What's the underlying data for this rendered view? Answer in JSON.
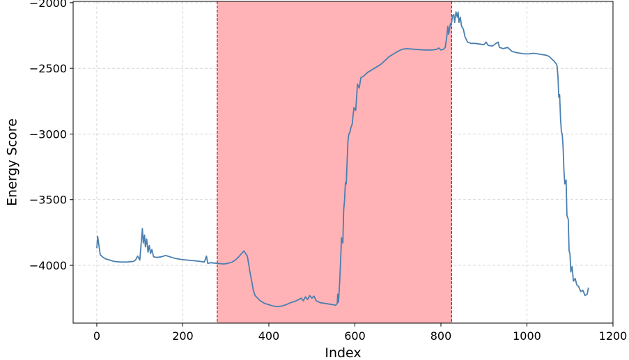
{
  "chart_data": {
    "type": "line",
    "title": "",
    "xlabel": "Index",
    "ylabel": "Energy Score",
    "xlim": [
      -55,
      1200
    ],
    "ylim": [
      -4440,
      -1990
    ],
    "xticks": [
      0,
      200,
      400,
      600,
      800,
      1000,
      1200
    ],
    "xtick_labels": [
      "0",
      "200",
      "400",
      "600",
      "800",
      "1000",
      "1200"
    ],
    "yticks": [
      -2000,
      -2500,
      -3000,
      -3500,
      -4000
    ],
    "ytick_labels": [
      "−2000",
      "−2500",
      "−3000",
      "−3500",
      "−4000"
    ],
    "grid": true,
    "shaded_region": {
      "x_start": 280,
      "x_end": 825,
      "color": "#ffb3b6",
      "edge_color": "#e00000"
    },
    "series": [
      {
        "color": "#4a7fb0",
        "points": [
          [
            0,
            -3870
          ],
          [
            2,
            -3780
          ],
          [
            5,
            -3850
          ],
          [
            8,
            -3920
          ],
          [
            15,
            -3940
          ],
          [
            20,
            -3950
          ],
          [
            30,
            -3960
          ],
          [
            40,
            -3970
          ],
          [
            55,
            -3975
          ],
          [
            70,
            -3975
          ],
          [
            85,
            -3970
          ],
          [
            90,
            -3960
          ],
          [
            95,
            -3930
          ],
          [
            100,
            -3960
          ],
          [
            104,
            -3800
          ],
          [
            106,
            -3720
          ],
          [
            108,
            -3830
          ],
          [
            111,
            -3770
          ],
          [
            113,
            -3860
          ],
          [
            116,
            -3800
          ],
          [
            119,
            -3900
          ],
          [
            122,
            -3850
          ],
          [
            125,
            -3910
          ],
          [
            128,
            -3880
          ],
          [
            132,
            -3935
          ],
          [
            140,
            -3940
          ],
          [
            150,
            -3935
          ],
          [
            160,
            -3925
          ],
          [
            170,
            -3935
          ],
          [
            180,
            -3945
          ],
          [
            195,
            -3955
          ],
          [
            210,
            -3960
          ],
          [
            225,
            -3965
          ],
          [
            240,
            -3970
          ],
          [
            250,
            -3975
          ],
          [
            255,
            -3930
          ],
          [
            258,
            -3985
          ],
          [
            265,
            -3980
          ],
          [
            280,
            -3985
          ],
          [
            295,
            -3990
          ],
          [
            305,
            -3985
          ],
          [
            315,
            -3975
          ],
          [
            322,
            -3960
          ],
          [
            330,
            -3935
          ],
          [
            338,
            -3905
          ],
          [
            342,
            -3890
          ],
          [
            346,
            -3910
          ],
          [
            350,
            -3930
          ],
          [
            353,
            -3990
          ],
          [
            356,
            -4050
          ],
          [
            360,
            -4120
          ],
          [
            364,
            -4190
          ],
          [
            368,
            -4230
          ],
          [
            374,
            -4250
          ],
          [
            380,
            -4270
          ],
          [
            390,
            -4290
          ],
          [
            400,
            -4300
          ],
          [
            410,
            -4310
          ],
          [
            420,
            -4315
          ],
          [
            430,
            -4310
          ],
          [
            440,
            -4300
          ],
          [
            450,
            -4285
          ],
          [
            460,
            -4275
          ],
          [
            470,
            -4260
          ],
          [
            475,
            -4250
          ],
          [
            480,
            -4270
          ],
          [
            485,
            -4240
          ],
          [
            490,
            -4260
          ],
          [
            495,
            -4230
          ],
          [
            500,
            -4250
          ],
          [
            505,
            -4235
          ],
          [
            510,
            -4270
          ],
          [
            520,
            -4285
          ],
          [
            530,
            -4290
          ],
          [
            540,
            -4295
          ],
          [
            550,
            -4300
          ],
          [
            555,
            -4305
          ],
          [
            559,
            -4290
          ],
          [
            560,
            -4220
          ],
          [
            562,
            -4280
          ],
          [
            565,
            -4100
          ],
          [
            567,
            -3950
          ],
          [
            569,
            -3790
          ],
          [
            572,
            -3830
          ],
          [
            574,
            -3580
          ],
          [
            576,
            -3500
          ],
          [
            578,
            -3370
          ],
          [
            580,
            -3380
          ],
          [
            582,
            -3200
          ],
          [
            584,
            -3050
          ],
          [
            586,
            -3000
          ],
          [
            588,
            -2990
          ],
          [
            591,
            -2950
          ],
          [
            594,
            -2920
          ],
          [
            596,
            -2850
          ],
          [
            598,
            -2800
          ],
          [
            602,
            -2820
          ],
          [
            606,
            -2620
          ],
          [
            610,
            -2650
          ],
          [
            614,
            -2570
          ],
          [
            620,
            -2560
          ],
          [
            630,
            -2530
          ],
          [
            640,
            -2510
          ],
          [
            650,
            -2490
          ],
          [
            660,
            -2470
          ],
          [
            670,
            -2440
          ],
          [
            680,
            -2410
          ],
          [
            690,
            -2390
          ],
          [
            700,
            -2370
          ],
          [
            710,
            -2355
          ],
          [
            720,
            -2350
          ],
          [
            740,
            -2355
          ],
          [
            760,
            -2360
          ],
          [
            780,
            -2360
          ],
          [
            790,
            -2355
          ],
          [
            795,
            -2345
          ],
          [
            800,
            -2360
          ],
          [
            806,
            -2355
          ],
          [
            810,
            -2340
          ],
          [
            814,
            -2250
          ],
          [
            816,
            -2180
          ],
          [
            818,
            -2240
          ],
          [
            822,
            -2160
          ],
          [
            824,
            -2170
          ],
          [
            827,
            -2100
          ],
          [
            830,
            -2090
          ],
          [
            832,
            -2150
          ],
          [
            835,
            -2070
          ],
          [
            838,
            -2110
          ],
          [
            840,
            -2070
          ],
          [
            842,
            -2150
          ],
          [
            845,
            -2110
          ],
          [
            848,
            -2180
          ],
          [
            852,
            -2200
          ],
          [
            856,
            -2260
          ],
          [
            862,
            -2300
          ],
          [
            870,
            -2310
          ],
          [
            880,
            -2310
          ],
          [
            890,
            -2315
          ],
          [
            900,
            -2320
          ],
          [
            905,
            -2300
          ],
          [
            910,
            -2325
          ],
          [
            920,
            -2330
          ],
          [
            928,
            -2310
          ],
          [
            933,
            -2300
          ],
          [
            936,
            -2340
          ],
          [
            945,
            -2350
          ],
          [
            955,
            -2340
          ],
          [
            965,
            -2370
          ],
          [
            975,
            -2380
          ],
          [
            985,
            -2385
          ],
          [
            995,
            -2390
          ],
          [
            1005,
            -2390
          ],
          [
            1015,
            -2385
          ],
          [
            1025,
            -2390
          ],
          [
            1035,
            -2395
          ],
          [
            1045,
            -2400
          ],
          [
            1052,
            -2410
          ],
          [
            1058,
            -2430
          ],
          [
            1063,
            -2445
          ],
          [
            1068,
            -2465
          ],
          [
            1070,
            -2480
          ],
          [
            1072,
            -2560
          ],
          [
            1074,
            -2720
          ],
          [
            1076,
            -2700
          ],
          [
            1078,
            -2880
          ],
          [
            1080,
            -2980
          ],
          [
            1082,
            -3000
          ],
          [
            1084,
            -3100
          ],
          [
            1086,
            -3280
          ],
          [
            1088,
            -3380
          ],
          [
            1091,
            -3350
          ],
          [
            1093,
            -3620
          ],
          [
            1096,
            -3650
          ],
          [
            1098,
            -3890
          ],
          [
            1100,
            -3910
          ],
          [
            1102,
            -4050
          ],
          [
            1105,
            -4010
          ],
          [
            1108,
            -4120
          ],
          [
            1112,
            -4100
          ],
          [
            1116,
            -4150
          ],
          [
            1120,
            -4160
          ],
          [
            1125,
            -4200
          ],
          [
            1130,
            -4190
          ],
          [
            1135,
            -4230
          ],
          [
            1140,
            -4220
          ],
          [
            1143,
            -4170
          ]
        ]
      }
    ]
  }
}
